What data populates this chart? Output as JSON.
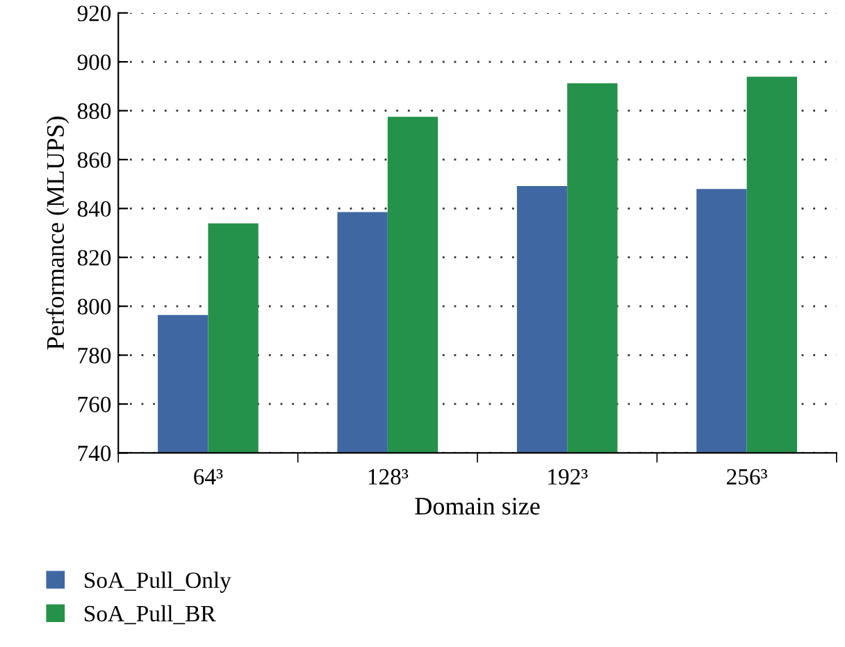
{
  "chart_data": {
    "type": "bar",
    "xlabel": "Domain size",
    "ylabel": "Performance (MLUPS)",
    "categories": [
      "64³",
      "128³",
      "192³",
      "256³"
    ],
    "series": [
      {
        "name": "SoA_Pull_Only",
        "color": "#3f68a2",
        "values": [
          796.4,
          838.5,
          849.2,
          848
        ]
      },
      {
        "name": "SoA_Pull_BR",
        "color": "#24924a",
        "values": [
          833.9,
          877.5,
          891.2,
          893.9
        ]
      }
    ],
    "ylim": [
      740,
      920
    ],
    "yticks": [
      740,
      760,
      780,
      800,
      820,
      840,
      860,
      880,
      900,
      920
    ],
    "grid": "y",
    "legend": "bottom left"
  }
}
